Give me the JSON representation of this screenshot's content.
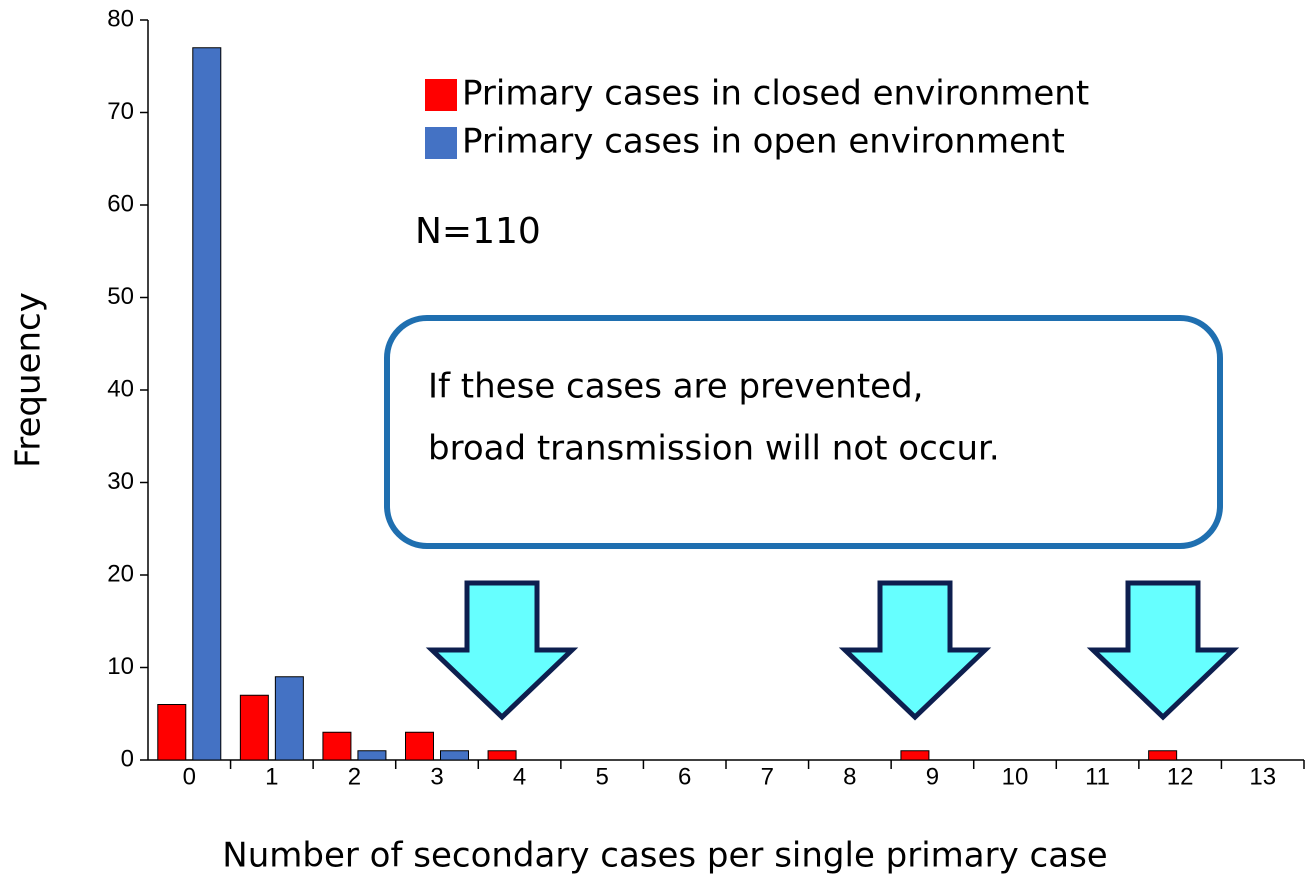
{
  "chart_data": {
    "type": "bar",
    "x_label": "Number of secondary cases per single primary case",
    "y_label": "Frequency",
    "categories": [
      "0",
      "1",
      "2",
      "3",
      "4",
      "5",
      "6",
      "7",
      "8",
      "9",
      "10",
      "11",
      "12",
      "13"
    ],
    "series": [
      {
        "name": "Primary cases in closed environment",
        "color": "#ff0000",
        "values": [
          6,
          7,
          3,
          3,
          1,
          0,
          0,
          0,
          0,
          1,
          0,
          0,
          1,
          0
        ]
      },
      {
        "name": "Primary cases in open environment",
        "color": "#4472c4",
        "values": [
          77,
          9,
          1,
          1,
          0,
          0,
          0,
          0,
          0,
          0,
          0,
          0,
          0,
          0
        ]
      }
    ],
    "ylim": [
      0,
      80
    ],
    "yticks": [
      0,
      10,
      20,
      30,
      40,
      50,
      60,
      70,
      80
    ],
    "grid": false,
    "annotations": [
      "N=110",
      "If these cases are prevented,",
      "broad transmission will not occur."
    ]
  }
}
